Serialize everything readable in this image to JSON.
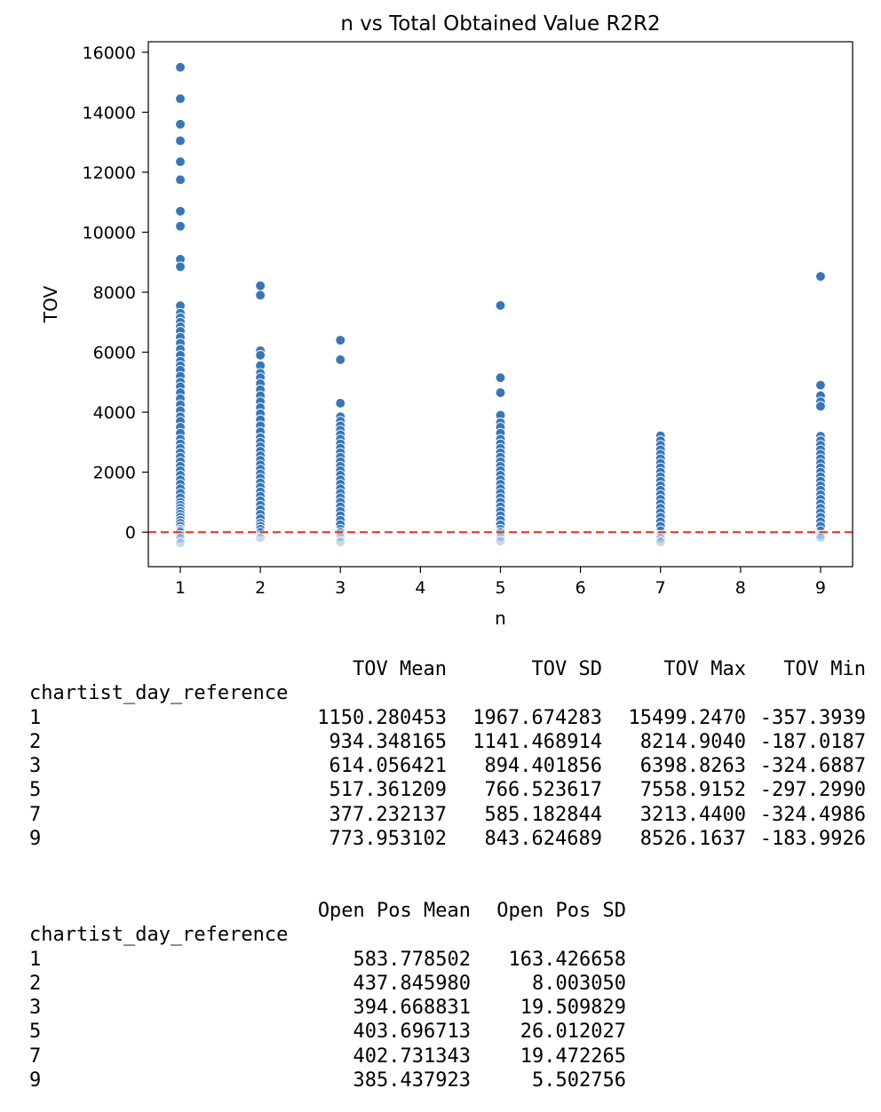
{
  "chart_data": {
    "type": "scatter",
    "title": "n vs Total Obtained Value R2R2",
    "xlabel": "n",
    "ylabel": "TOV",
    "xlim": [
      0.6,
      9.4
    ],
    "ylim": [
      -1150,
      16350
    ],
    "xticks": [
      1,
      2,
      3,
      4,
      5,
      6,
      7,
      8,
      9
    ],
    "yticks": [
      0,
      2000,
      4000,
      6000,
      8000,
      10000,
      12000,
      14000,
      16000
    ],
    "grid": false,
    "reference_line": {
      "y": 0,
      "color": "#e8392b",
      "style": "dashed"
    },
    "point_color": "#3a76b4",
    "series": [
      {
        "x": 1,
        "values": [
          15499.247,
          14450,
          13600,
          13050,
          12350,
          11750,
          10700,
          10200,
          9100,
          8850,
          7550,
          7300,
          7150,
          7000,
          6850,
          6700,
          6500,
          6300,
          6100,
          5900,
          5700,
          5550,
          5400,
          5200,
          5000,
          4850,
          4650,
          4450,
          4250,
          4050,
          3850,
          3700,
          3500,
          3300,
          3100,
          2950,
          2800,
          2650,
          2500,
          2350,
          2200,
          2050,
          1900,
          1750,
          1600,
          1450,
          1300,
          1150,
          1000,
          900,
          800,
          700,
          600,
          500,
          400,
          300,
          200,
          100,
          50,
          0,
          -100,
          -200,
          -357.3939
        ]
      },
      {
        "x": 2,
        "values": [
          8214.904,
          7900,
          6050,
          5900,
          5550,
          5300,
          5150,
          4950,
          4750,
          4550,
          4350,
          4150,
          3950,
          3750,
          3550,
          3350,
          3150,
          3000,
          2850,
          2700,
          2550,
          2400,
          2250,
          2100,
          1950,
          1800,
          1650,
          1500,
          1350,
          1200,
          1050,
          900,
          750,
          600,
          450,
          300,
          200,
          100,
          0,
          -187.0187
        ]
      },
      {
        "x": 3,
        "values": [
          6398.8263,
          5750,
          4300,
          3850,
          3700,
          3550,
          3400,
          3250,
          3100,
          2950,
          2800,
          2650,
          2500,
          2350,
          2200,
          2050,
          1900,
          1750,
          1600,
          1450,
          1300,
          1150,
          1000,
          850,
          700,
          550,
          400,
          250,
          100,
          0,
          -150,
          -324.6887
        ]
      },
      {
        "x": 5,
        "values": [
          7558.9152,
          5150,
          4650,
          3900,
          3650,
          3500,
          3300,
          3100,
          2950,
          2800,
          2650,
          2500,
          2350,
          2200,
          2050,
          1900,
          1750,
          1600,
          1450,
          1300,
          1150,
          1000,
          850,
          700,
          550,
          400,
          250,
          100,
          0,
          -150,
          -297.299
        ]
      },
      {
        "x": 7,
        "values": [
          3213.44,
          3050,
          2900,
          2750,
          2600,
          2450,
          2300,
          2150,
          2000,
          1850,
          1700,
          1550,
          1400,
          1250,
          1100,
          950,
          800,
          650,
          500,
          350,
          200,
          50,
          -100,
          -200,
          -324.4986
        ]
      },
      {
        "x": 9,
        "values": [
          8526.1637,
          4900,
          4550,
          4350,
          4200,
          3200,
          3050,
          2900,
          2750,
          2600,
          2450,
          2300,
          2150,
          2000,
          1850,
          1700,
          1550,
          1400,
          1250,
          1100,
          950,
          800,
          650,
          500,
          350,
          200,
          50,
          -100,
          -183.9926
        ]
      }
    ]
  },
  "tables": [
    {
      "index_name": "chartist_day_reference",
      "columns": [
        "TOV Mean",
        "TOV SD",
        "TOV Max",
        "TOV Min"
      ],
      "rows": [
        {
          "index": "1",
          "cells": [
            "1150.280453",
            "1967.674283",
            "15499.2470",
            "-357.3939"
          ]
        },
        {
          "index": "2",
          "cells": [
            "934.348165",
            "1141.468914",
            "8214.9040",
            "-187.0187"
          ]
        },
        {
          "index": "3",
          "cells": [
            "614.056421",
            "894.401856",
            "6398.8263",
            "-324.6887"
          ]
        },
        {
          "index": "5",
          "cells": [
            "517.361209",
            "766.523617",
            "7558.9152",
            "-297.2990"
          ]
        },
        {
          "index": "7",
          "cells": [
            "377.232137",
            "585.182844",
            "3213.4400",
            "-324.4986"
          ]
        },
        {
          "index": "9",
          "cells": [
            "773.953102",
            "843.624689",
            "8526.1637",
            "-183.9926"
          ]
        }
      ]
    },
    {
      "index_name": "chartist_day_reference",
      "columns": [
        "Open Pos Mean",
        "Open Pos SD"
      ],
      "rows": [
        {
          "index": "1",
          "cells": [
            "583.778502",
            "163.426658"
          ]
        },
        {
          "index": "2",
          "cells": [
            "437.845980",
            "8.003050"
          ]
        },
        {
          "index": "3",
          "cells": [
            "394.668831",
            "19.509829"
          ]
        },
        {
          "index": "5",
          "cells": [
            "403.696713",
            "26.012027"
          ]
        },
        {
          "index": "7",
          "cells": [
            "402.731343",
            "19.472265"
          ]
        },
        {
          "index": "9",
          "cells": [
            "385.437923",
            "5.502756"
          ]
        }
      ]
    }
  ]
}
